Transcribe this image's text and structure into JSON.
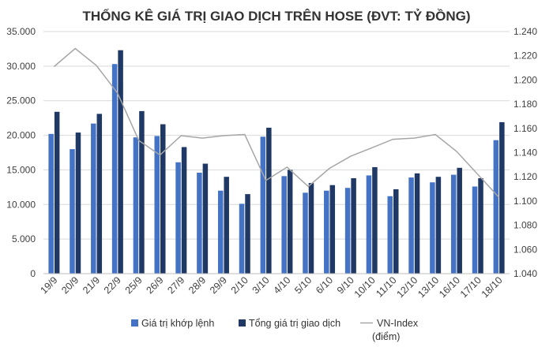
{
  "chart_data": {
    "type": "bar",
    "title": "THỐNG KÊ GIÁ TRỊ GIAO DỊCH TRÊN HOSE (ĐVT: TỶ ĐỒNG)",
    "categories": [
      "19/9",
      "20/9",
      "21/9",
      "22/9",
      "25/9",
      "26/9",
      "27/9",
      "28/9",
      "29/9",
      "2/10",
      "3/10",
      "4/10",
      "5/10",
      "6/10",
      "9/10",
      "10/10",
      "11/10",
      "12/10",
      "13/10",
      "16/10",
      "17/10",
      "18/10"
    ],
    "y_left": {
      "min": 0,
      "max": 35000,
      "step": 5000,
      "tick_labels": [
        "0",
        "5.000",
        "10.000",
        "15.000",
        "20.000",
        "25.000",
        "30.000",
        "35.000"
      ]
    },
    "y_right": {
      "min": 1040,
      "max": 1240,
      "step": 20,
      "tick_labels": [
        "1.040",
        "1.060",
        "1.080",
        "1.100",
        "1.120",
        "1.140",
        "1.160",
        "1.180",
        "1.200",
        "1.220",
        "1.240"
      ]
    },
    "grid": true,
    "legend_position": "bottom",
    "series": [
      {
        "name": "Giá trị khớp lệnh",
        "kind": "bar",
        "axis": "left",
        "color": "#4472c4",
        "values": [
          20200,
          18000,
          21700,
          30300,
          19700,
          19900,
          16100,
          14600,
          12000,
          10100,
          19800,
          14100,
          11700,
          12000,
          12400,
          14200,
          11200,
          13900,
          13200,
          14300,
          12600,
          19300
        ]
      },
      {
        "name": "Tổng giá trị giao dịch",
        "kind": "bar",
        "axis": "left",
        "color": "#1f3864",
        "values": [
          23400,
          20400,
          23100,
          32300,
          23500,
          21600,
          18300,
          15900,
          14000,
          11500,
          21100,
          15000,
          13100,
          12800,
          13800,
          15400,
          12200,
          14500,
          14000,
          15300,
          13800,
          21900
        ]
      },
      {
        "name": "VN-Index",
        "name_line2": "(điểm)",
        "kind": "line",
        "axis": "right",
        "color": "#a6a6a6",
        "values": [
          1211,
          1226,
          1212,
          1189,
          1150,
          1138,
          1154,
          1152,
          1154,
          1155,
          1117,
          1128,
          1112,
          1127,
          1137,
          1144,
          1151,
          1152,
          1155,
          1141,
          1122,
          1103
        ]
      }
    ]
  }
}
